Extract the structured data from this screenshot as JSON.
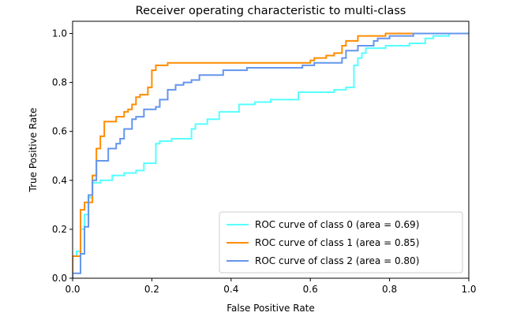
{
  "chart_data": {
    "type": "line",
    "title": "Receiver operating characteristic to multi-class",
    "xlabel": "False Positive Rate",
    "ylabel": "True Positive Rate",
    "xlim": [
      0.0,
      1.0
    ],
    "ylim": [
      0.0,
      1.05
    ],
    "xticks": [
      0.0,
      0.2,
      0.4,
      0.6,
      0.8,
      1.0
    ],
    "yticks": [
      0.0,
      0.2,
      0.4,
      0.6,
      0.8,
      1.0
    ],
    "xtick_labels": [
      "0.0",
      "0.2",
      "0.4",
      "0.6",
      "0.8",
      "1.0"
    ],
    "ytick_labels": [
      "0.0",
      "0.2",
      "0.4",
      "0.6",
      "0.8",
      "1.0"
    ],
    "grid": false,
    "legend_position": "lower-right",
    "series": [
      {
        "name": "ROC curve of class 0 (area = 0.69)",
        "color": "#55ffff",
        "points": [
          [
            0.0,
            0.0
          ],
          [
            0.0,
            0.09
          ],
          [
            0.01,
            0.09
          ],
          [
            0.01,
            0.11
          ],
          [
            0.02,
            0.11
          ],
          [
            0.02,
            0.2
          ],
          [
            0.03,
            0.2
          ],
          [
            0.03,
            0.26
          ],
          [
            0.04,
            0.26
          ],
          [
            0.04,
            0.33
          ],
          [
            0.05,
            0.33
          ],
          [
            0.05,
            0.39
          ],
          [
            0.07,
            0.39
          ],
          [
            0.07,
            0.4
          ],
          [
            0.1,
            0.4
          ],
          [
            0.1,
            0.42
          ],
          [
            0.13,
            0.42
          ],
          [
            0.13,
            0.43
          ],
          [
            0.16,
            0.43
          ],
          [
            0.16,
            0.44
          ],
          [
            0.18,
            0.44
          ],
          [
            0.18,
            0.47
          ],
          [
            0.21,
            0.47
          ],
          [
            0.21,
            0.55
          ],
          [
            0.22,
            0.55
          ],
          [
            0.22,
            0.56
          ],
          [
            0.25,
            0.56
          ],
          [
            0.25,
            0.57
          ],
          [
            0.3,
            0.57
          ],
          [
            0.3,
            0.61
          ],
          [
            0.31,
            0.61
          ],
          [
            0.31,
            0.63
          ],
          [
            0.34,
            0.63
          ],
          [
            0.34,
            0.65
          ],
          [
            0.37,
            0.65
          ],
          [
            0.37,
            0.68
          ],
          [
            0.42,
            0.68
          ],
          [
            0.42,
            0.71
          ],
          [
            0.46,
            0.71
          ],
          [
            0.46,
            0.72
          ],
          [
            0.5,
            0.72
          ],
          [
            0.5,
            0.73
          ],
          [
            0.57,
            0.73
          ],
          [
            0.57,
            0.76
          ],
          [
            0.66,
            0.76
          ],
          [
            0.66,
            0.77
          ],
          [
            0.69,
            0.77
          ],
          [
            0.69,
            0.78
          ],
          [
            0.71,
            0.78
          ],
          [
            0.71,
            0.87
          ],
          [
            0.72,
            0.87
          ],
          [
            0.72,
            0.9
          ],
          [
            0.73,
            0.9
          ],
          [
            0.73,
            0.92
          ],
          [
            0.74,
            0.92
          ],
          [
            0.74,
            0.94
          ],
          [
            0.79,
            0.94
          ],
          [
            0.79,
            0.95
          ],
          [
            0.85,
            0.95
          ],
          [
            0.85,
            0.96
          ],
          [
            0.89,
            0.96
          ],
          [
            0.89,
            0.98
          ],
          [
            0.91,
            0.98
          ],
          [
            0.91,
            0.99
          ],
          [
            0.95,
            0.99
          ],
          [
            0.95,
            1.0
          ],
          [
            1.0,
            1.0
          ]
        ]
      },
      {
        "name": "ROC curve of class 1 (area = 0.85)",
        "color": "#ff8c00",
        "points": [
          [
            0.0,
            0.0
          ],
          [
            0.0,
            0.09
          ],
          [
            0.02,
            0.09
          ],
          [
            0.02,
            0.28
          ],
          [
            0.03,
            0.28
          ],
          [
            0.03,
            0.31
          ],
          [
            0.05,
            0.31
          ],
          [
            0.05,
            0.42
          ],
          [
            0.06,
            0.42
          ],
          [
            0.06,
            0.53
          ],
          [
            0.07,
            0.53
          ],
          [
            0.07,
            0.58
          ],
          [
            0.08,
            0.58
          ],
          [
            0.08,
            0.64
          ],
          [
            0.11,
            0.64
          ],
          [
            0.11,
            0.66
          ],
          [
            0.13,
            0.66
          ],
          [
            0.13,
            0.68
          ],
          [
            0.14,
            0.68
          ],
          [
            0.14,
            0.69
          ],
          [
            0.15,
            0.69
          ],
          [
            0.15,
            0.71
          ],
          [
            0.16,
            0.71
          ],
          [
            0.16,
            0.74
          ],
          [
            0.17,
            0.74
          ],
          [
            0.17,
            0.75
          ],
          [
            0.19,
            0.75
          ],
          [
            0.19,
            0.78
          ],
          [
            0.2,
            0.78
          ],
          [
            0.2,
            0.85
          ],
          [
            0.21,
            0.85
          ],
          [
            0.21,
            0.87
          ],
          [
            0.24,
            0.87
          ],
          [
            0.24,
            0.88
          ],
          [
            0.6,
            0.88
          ],
          [
            0.6,
            0.89
          ],
          [
            0.61,
            0.89
          ],
          [
            0.61,
            0.9
          ],
          [
            0.64,
            0.9
          ],
          [
            0.64,
            0.91
          ],
          [
            0.66,
            0.91
          ],
          [
            0.66,
            0.92
          ],
          [
            0.68,
            0.92
          ],
          [
            0.68,
            0.95
          ],
          [
            0.69,
            0.95
          ],
          [
            0.69,
            0.97
          ],
          [
            0.72,
            0.97
          ],
          [
            0.72,
            0.99
          ],
          [
            0.79,
            0.99
          ],
          [
            0.79,
            1.0
          ],
          [
            1.0,
            1.0
          ]
        ]
      },
      {
        "name": "ROC curve of class 2 (area = 0.80)",
        "color": "#6495ed",
        "points": [
          [
            0.0,
            0.0
          ],
          [
            0.0,
            0.02
          ],
          [
            0.02,
            0.02
          ],
          [
            0.02,
            0.1
          ],
          [
            0.03,
            0.1
          ],
          [
            0.03,
            0.21
          ],
          [
            0.04,
            0.21
          ],
          [
            0.04,
            0.34
          ],
          [
            0.05,
            0.34
          ],
          [
            0.05,
            0.4
          ],
          [
            0.06,
            0.4
          ],
          [
            0.06,
            0.48
          ],
          [
            0.09,
            0.48
          ],
          [
            0.09,
            0.53
          ],
          [
            0.11,
            0.53
          ],
          [
            0.11,
            0.55
          ],
          [
            0.12,
            0.55
          ],
          [
            0.12,
            0.57
          ],
          [
            0.13,
            0.57
          ],
          [
            0.13,
            0.61
          ],
          [
            0.15,
            0.61
          ],
          [
            0.15,
            0.65
          ],
          [
            0.16,
            0.65
          ],
          [
            0.16,
            0.66
          ],
          [
            0.18,
            0.66
          ],
          [
            0.18,
            0.69
          ],
          [
            0.21,
            0.69
          ],
          [
            0.21,
            0.7
          ],
          [
            0.22,
            0.7
          ],
          [
            0.22,
            0.73
          ],
          [
            0.24,
            0.73
          ],
          [
            0.24,
            0.77
          ],
          [
            0.26,
            0.77
          ],
          [
            0.26,
            0.79
          ],
          [
            0.28,
            0.79
          ],
          [
            0.28,
            0.8
          ],
          [
            0.3,
            0.8
          ],
          [
            0.3,
            0.81
          ],
          [
            0.32,
            0.81
          ],
          [
            0.32,
            0.83
          ],
          [
            0.38,
            0.83
          ],
          [
            0.38,
            0.85
          ],
          [
            0.44,
            0.85
          ],
          [
            0.44,
            0.86
          ],
          [
            0.58,
            0.86
          ],
          [
            0.58,
            0.87
          ],
          [
            0.61,
            0.87
          ],
          [
            0.61,
            0.88
          ],
          [
            0.68,
            0.88
          ],
          [
            0.68,
            0.9
          ],
          [
            0.69,
            0.9
          ],
          [
            0.69,
            0.93
          ],
          [
            0.72,
            0.93
          ],
          [
            0.72,
            0.95
          ],
          [
            0.76,
            0.95
          ],
          [
            0.76,
            0.97
          ],
          [
            0.77,
            0.97
          ],
          [
            0.77,
            0.98
          ],
          [
            0.8,
            0.98
          ],
          [
            0.8,
            0.99
          ],
          [
            0.86,
            0.99
          ],
          [
            0.86,
            1.0
          ],
          [
            1.0,
            1.0
          ]
        ]
      }
    ]
  }
}
